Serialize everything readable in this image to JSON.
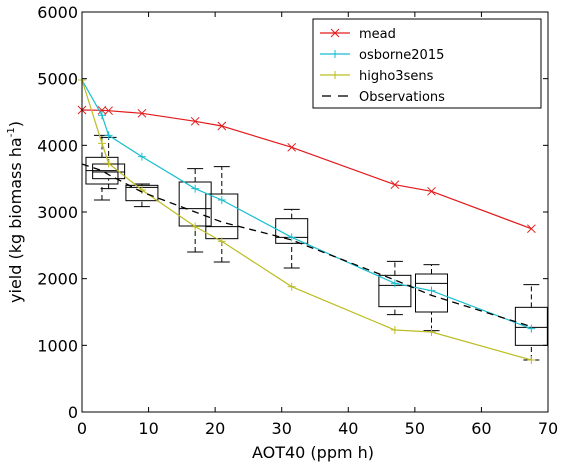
{
  "chart_data": {
    "type": "line",
    "xlabel": "AOT40 (ppm h)",
    "ylabel": "yield (kg biomass ha",
    "ylabel_sup": "-1",
    "ylabel_close": ")",
    "xlim": [
      0,
      70
    ],
    "ylim": [
      0,
      6000
    ],
    "x_ticks": [
      0,
      10,
      20,
      30,
      40,
      50,
      60,
      70
    ],
    "y_ticks": [
      0,
      1000,
      2000,
      3000,
      4000,
      5000,
      6000
    ],
    "grid": false,
    "legend_position": "top-right",
    "series": [
      {
        "name": "mead",
        "color": "#e31a1c",
        "marker": "x",
        "x": [
          0,
          3,
          4,
          9,
          17,
          21,
          31.5,
          47,
          52.5,
          67.5
        ],
        "y": [
          4530,
          4525,
          4520,
          4480,
          4360,
          4290,
          3970,
          3410,
          3310,
          2750
        ]
      },
      {
        "name": "osborne2015",
        "color": "#17becf",
        "marker": "+",
        "x": [
          0,
          3,
          4,
          9,
          17,
          21,
          31.5,
          47,
          52.5,
          67.5
        ],
        "y": [
          4980,
          4450,
          4150,
          3830,
          3350,
          3180,
          2620,
          1930,
          1820,
          1250
        ]
      },
      {
        "name": "higho3sens",
        "color": "#bcbd22",
        "marker": "+",
        "x": [
          0,
          3,
          4,
          9,
          17,
          21,
          31.5,
          47,
          52.5,
          67.5
        ],
        "y": [
          4980,
          4030,
          3730,
          3330,
          2780,
          2560,
          1880,
          1230,
          1200,
          780
        ]
      },
      {
        "name": "Observations",
        "color": "#000000",
        "marker": "none",
        "dashed": true,
        "x": [
          0,
          3,
          4,
          9,
          17,
          21,
          31.5,
          47,
          52.5,
          67.5
        ],
        "y": [
          3720,
          3620,
          3560,
          3300,
          3000,
          2850,
          2580,
          1980,
          1750,
          1280
        ]
      }
    ],
    "boxes": [
      {
        "x": 3,
        "whisker_low": 3180,
        "q1": 3420,
        "median": 3620,
        "q3": 3820,
        "whisker_high": 4150
      },
      {
        "x": 4,
        "whisker_low": 3350,
        "q1": 3500,
        "median": 3600,
        "q3": 3720,
        "whisker_high": 4120
      },
      {
        "x": 9,
        "whisker_low": 3080,
        "q1": 3170,
        "median": 3370,
        "q3": 3400,
        "whisker_high": 3420
      },
      {
        "x": 17,
        "whisker_low": 2400,
        "q1": 2790,
        "median": 3050,
        "q3": 3450,
        "whisker_high": 3650
      },
      {
        "x": 21,
        "whisker_low": 2250,
        "q1": 2600,
        "median": 2780,
        "q3": 3270,
        "whisker_high": 3680
      },
      {
        "x": 31.5,
        "whisker_low": 2160,
        "q1": 2530,
        "median": 2620,
        "q3": 2900,
        "whisker_high": 3040
      },
      {
        "x": 47,
        "whisker_low": 1460,
        "q1": 1580,
        "median": 1900,
        "q3": 2050,
        "whisker_high": 2260
      },
      {
        "x": 52.5,
        "whisker_low": 1220,
        "q1": 1500,
        "median": 1930,
        "q3": 2070,
        "whisker_high": 2210
      },
      {
        "x": 67.5,
        "whisker_low": 780,
        "q1": 1000,
        "median": 1270,
        "q3": 1570,
        "whisker_high": 1910
      }
    ]
  }
}
